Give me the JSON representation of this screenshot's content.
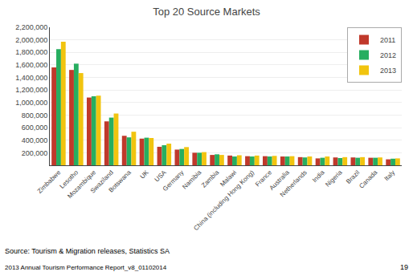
{
  "chart_data": {
    "type": "bar",
    "title": "Top 20 Source Markets",
    "categories": [
      "Zimbabwe",
      "Lesotho",
      "Mozambique",
      "Swaziland",
      "Botswana",
      "UK",
      "USA",
      "Germany",
      "Namibia",
      "Zambia",
      "Malawi",
      "China (including Hong Kong)",
      "France",
      "Australia",
      "Netherlands",
      "India",
      "Nigeria",
      "Brazil",
      "Canada",
      "Italy"
    ],
    "series": [
      {
        "name": "2011",
        "color": "#C0392B",
        "values": [
          1560000,
          1520000,
          1080000,
          700000,
          470000,
          425000,
          295000,
          250000,
          200000,
          165000,
          155000,
          145000,
          145000,
          140000,
          130000,
          110000,
          125000,
          125000,
          120000,
          95000
        ]
      },
      {
        "name": "2012",
        "color": "#27AE60",
        "values": [
          1850000,
          1620000,
          1100000,
          760000,
          445000,
          440000,
          320000,
          260000,
          200000,
          175000,
          140000,
          140000,
          140000,
          140000,
          125000,
          120000,
          115000,
          120000,
          120000,
          105000
        ]
      },
      {
        "name": "2013",
        "color": "#F1C40F",
        "values": [
          1970000,
          1470000,
          1110000,
          825000,
          535000,
          435000,
          345000,
          290000,
          210000,
          165000,
          160000,
          155000,
          150000,
          145000,
          140000,
          140000,
          130000,
          130000,
          125000,
          110000
        ]
      }
    ],
    "ylim": [
      0,
      2200000
    ],
    "yticks": [
      {
        "value": 200000,
        "label": "200,000"
      },
      {
        "value": 400000,
        "label": "400,000"
      },
      {
        "value": 600000,
        "label": "600,000"
      },
      {
        "value": 800000,
        "label": "800,000"
      },
      {
        "value": 1000000,
        "label": "1,000,000"
      },
      {
        "value": 1200000,
        "label": "1,200,000"
      },
      {
        "value": 1400000,
        "label": "1,400,000"
      },
      {
        "value": 1600000,
        "label": "1,600,000"
      },
      {
        "value": 1800000,
        "label": "1,800,000"
      },
      {
        "value": 2000000,
        "label": "2,000,000"
      },
      {
        "value": 2200000,
        "label": "2,200,000"
      }
    ],
    "grid": true,
    "legend": "upper right",
    "annotations": [
      "Source: Tourism & Migration releases, Statistics SA",
      "2013 Annual Tourism Performance Report_v8_01102014",
      "19"
    ]
  }
}
